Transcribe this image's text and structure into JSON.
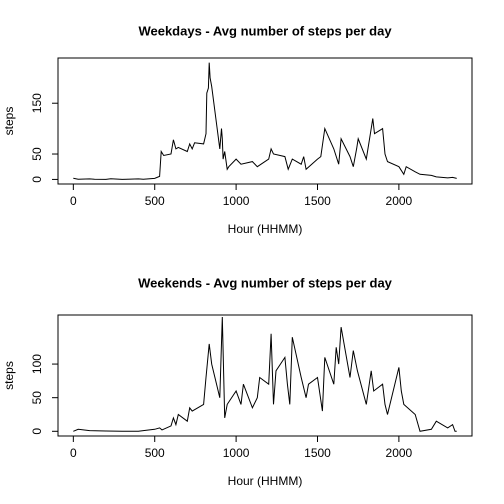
{
  "chart_data": [
    {
      "type": "line",
      "title": "Weekdays - Avg number of steps per day",
      "xlabel": "Hour (HHMM)",
      "ylabel": "steps",
      "color": "#000000",
      "xlim": [
        -94.2,
        2449.2
      ],
      "xticks": [
        0,
        500,
        1000,
        1500,
        2000
      ],
      "ylim": [
        -9,
        239
      ],
      "yticks": [
        0,
        50,
        150
      ],
      "x": [
        0,
        30,
        100,
        130,
        200,
        230,
        300,
        330,
        400,
        430,
        500,
        530,
        540,
        555,
        600,
        615,
        630,
        645,
        700,
        715,
        730,
        745,
        800,
        815,
        820,
        830,
        835,
        840,
        850,
        900,
        910,
        915,
        920,
        930,
        945,
        955,
        1000,
        1030,
        1100,
        1130,
        1200,
        1215,
        1230,
        1300,
        1320,
        1345,
        1400,
        1415,
        1430,
        1500,
        1520,
        1545,
        1600,
        1630,
        1645,
        1700,
        1720,
        1740,
        1750,
        1800,
        1830,
        1840,
        1850,
        1900,
        1915,
        1930,
        2000,
        2030,
        2045,
        2100,
        2130,
        2200,
        2230,
        2300,
        2330,
        2355
      ],
      "values": [
        2.3,
        0.5,
        1,
        0.2,
        0,
        1.5,
        0,
        0.5,
        1,
        0.2,
        2,
        6,
        55,
        47,
        50,
        78,
        60,
        63,
        55,
        70,
        60,
        72,
        70,
        90,
        170,
        180,
        230,
        200,
        183,
        60,
        100,
        80,
        40,
        55,
        20,
        25,
        40,
        30,
        35,
        25,
        40,
        60,
        50,
        45,
        20,
        40,
        30,
        45,
        20,
        40,
        45,
        100,
        60,
        30,
        80,
        45,
        25,
        60,
        80,
        40,
        100,
        120,
        90,
        100,
        50,
        35,
        25,
        10,
        25,
        15,
        10,
        8,
        5,
        3,
        4,
        2
      ]
    },
    {
      "type": "line",
      "title": "Weekends - Avg number of steps per day",
      "xlabel": "Hour (HHMM)",
      "ylabel": "steps",
      "color": "#000000",
      "xlim": [
        -94.2,
        2449.2
      ],
      "xticks": [
        0,
        500,
        1000,
        1500,
        2000
      ],
      "ylim": [
        -7,
        173
      ],
      "yticks": [
        0,
        50,
        100
      ],
      "x": [
        0,
        30,
        100,
        200,
        300,
        400,
        430,
        500,
        530,
        545,
        600,
        615,
        630,
        645,
        700,
        715,
        730,
        800,
        815,
        835,
        850,
        900,
        915,
        930,
        945,
        1000,
        1030,
        1045,
        1100,
        1130,
        1145,
        1200,
        1215,
        1230,
        1245,
        1300,
        1315,
        1330,
        1345,
        1400,
        1430,
        1445,
        1500,
        1530,
        1545,
        1600,
        1615,
        1630,
        1645,
        1700,
        1720,
        1745,
        1800,
        1830,
        1845,
        1900,
        1915,
        1930,
        2000,
        2015,
        2030,
        2100,
        2130,
        2200,
        2230,
        2300,
        2330,
        2345,
        2355
      ],
      "values": [
        0,
        3,
        1,
        0.5,
        0,
        0,
        1,
        3,
        5,
        2,
        8,
        20,
        10,
        25,
        15,
        35,
        30,
        40,
        80,
        130,
        100,
        50,
        170,
        20,
        40,
        60,
        40,
        70,
        35,
        50,
        80,
        70,
        145,
        40,
        90,
        110,
        70,
        40,
        140,
        80,
        50,
        70,
        80,
        30,
        110,
        70,
        125,
        100,
        155,
        80,
        120,
        90,
        40,
        90,
        60,
        70,
        40,
        25,
        95,
        60,
        40,
        25,
        0,
        3,
        15,
        5,
        10,
        0,
        0
      ]
    }
  ]
}
